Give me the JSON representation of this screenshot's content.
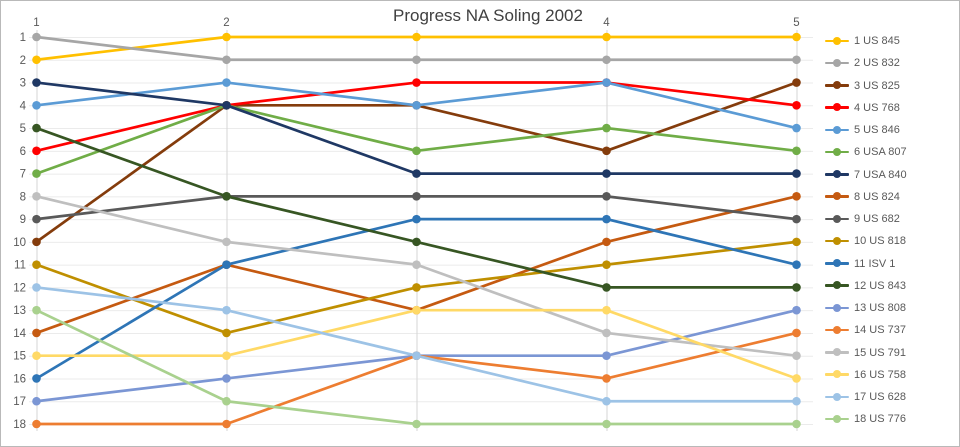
{
  "title": "Progress NA Soling 2002",
  "chart_data": {
    "type": "line",
    "subtype": "bump-rank-progress",
    "title": "Progress NA Soling 2002",
    "x": [
      1,
      2,
      3,
      4,
      5
    ],
    "x_axis_position": "top",
    "y_axis": {
      "min": 1,
      "max": 18,
      "inverted": true,
      "ticks": [
        1,
        2,
        3,
        4,
        5,
        6,
        7,
        8,
        9,
        10,
        11,
        12,
        13,
        14,
        15,
        16,
        17,
        18
      ]
    },
    "grid": true,
    "legend_position": "right",
    "series": [
      {
        "name": "1 US 845",
        "color": "#FFC000",
        "ranks": [
          2,
          1,
          1,
          1,
          1
        ]
      },
      {
        "name": "2 US 832",
        "color": "#A6A6A6",
        "ranks": [
          1,
          2,
          2,
          2,
          2
        ]
      },
      {
        "name": "3 US 825",
        "color": "#843C0C",
        "ranks": [
          10,
          4,
          4,
          6,
          3
        ]
      },
      {
        "name": "4 US 768",
        "color": "#FF0000",
        "ranks": [
          6,
          4,
          3,
          3,
          4
        ]
      },
      {
        "name": "5 US 846",
        "color": "#5B9BD5",
        "ranks": [
          4,
          3,
          4,
          3,
          5
        ]
      },
      {
        "name": "6 USA 807",
        "color": "#70AD47",
        "ranks": [
          7,
          4,
          6,
          5,
          6
        ]
      },
      {
        "name": "7 USA 840",
        "color": "#1F3864",
        "ranks": [
          3,
          4,
          7,
          7,
          7
        ]
      },
      {
        "name": "8 US 824",
        "color": "#C55A11",
        "ranks": [
          14,
          11,
          13,
          10,
          8
        ]
      },
      {
        "name": "9 US 682",
        "color": "#595959",
        "ranks": [
          9,
          8,
          8,
          8,
          9
        ]
      },
      {
        "name": "10 US 818",
        "color": "#BF8F00",
        "ranks": [
          11,
          14,
          12,
          11,
          10
        ]
      },
      {
        "name": "11 ISV 1",
        "color": "#2E75B6",
        "ranks": [
          16,
          11,
          9,
          9,
          11
        ]
      },
      {
        "name": "12 US 843",
        "color": "#375623",
        "ranks": [
          5,
          8,
          10,
          12,
          12
        ]
      },
      {
        "name": "13 US 808",
        "color": "#7B96D4",
        "ranks": [
          17,
          16,
          15,
          15,
          13
        ]
      },
      {
        "name": "14 US 737",
        "color": "#ED7D31",
        "ranks": [
          18,
          18,
          15,
          16,
          14
        ]
      },
      {
        "name": "15 US 791",
        "color": "#BFBFBF",
        "ranks": [
          8,
          10,
          11,
          14,
          15
        ]
      },
      {
        "name": "16 US 758",
        "color": "#FFD966",
        "ranks": [
          15,
          15,
          13,
          13,
          16
        ]
      },
      {
        "name": "17 US 628",
        "color": "#9DC3E6",
        "ranks": [
          12,
          13,
          15,
          17,
          17
        ]
      },
      {
        "name": "18 US 776",
        "color": "#A9D18E",
        "ranks": [
          13,
          17,
          18,
          18,
          18
        ]
      }
    ]
  }
}
